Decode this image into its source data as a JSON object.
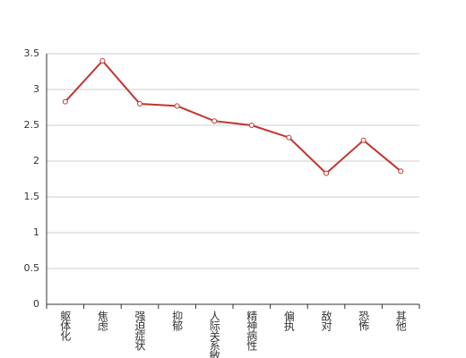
{
  "chart_data": {
    "type": "line",
    "categories": [
      "躯体化",
      "焦虑",
      "强迫症状",
      "抑郁",
      "人际关系敏感",
      "精神病性",
      "偏执",
      "敌对",
      "恐怖",
      "其他"
    ],
    "series": [
      {
        "color": "#c23531",
        "values": [
          2.83,
          3.4,
          2.8,
          2.77,
          2.56,
          2.5,
          2.33,
          1.83,
          2.29,
          1.86
        ]
      }
    ],
    "ylim": [
      0,
      3.5
    ],
    "yticks": [
      0,
      0.5,
      1,
      1.5,
      2,
      2.5,
      3,
      3.5
    ],
    "grid": true
  }
}
